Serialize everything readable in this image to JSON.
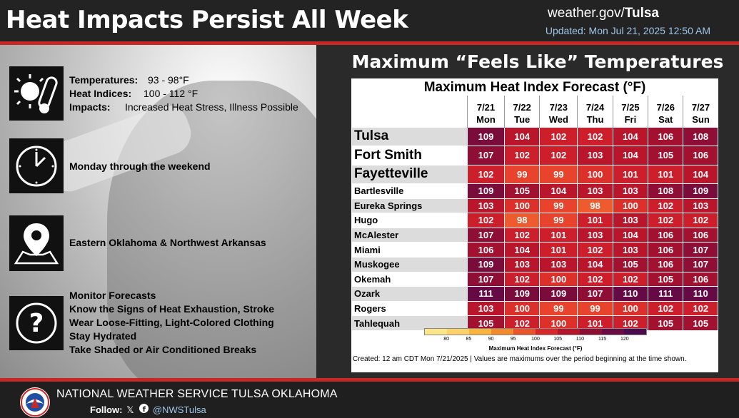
{
  "header": {
    "title": "Heat Impacts Persist All Week",
    "site_prefix": "weather.gov/",
    "site_office": "Tulsa",
    "updated": "Updated: Mon Jul 21, 2025 12:50 AM"
  },
  "left": {
    "temps_label": "Temperatures:",
    "temps_value": "93 - 98°F",
    "heat_label": "Heat Indices:",
    "heat_value": "100 - 112 °F",
    "impacts_label": "Impacts:",
    "impacts_value": "Increased Heat Stress, Illness Possible",
    "timing": "Monday through the weekend",
    "location": "Eastern Oklahoma & Northwest Arkansas",
    "actions": [
      "Monitor Forecasts",
      "Know the Signs of Heat Exhaustion, Stroke",
      "Wear Loose-Fitting, Light-Colored Clothing",
      "Stay Hydrated",
      "Take Shaded or Air Conditioned Breaks"
    ],
    "icons": [
      "sun-thermometer-icon",
      "clock-icon",
      "map-pin-icon",
      "question-icon"
    ]
  },
  "right": {
    "heading": "Maximum “Feels Like” Temperatures",
    "panel_title": "Maximum Heat Index Forecast (°F)",
    "dates": [
      "7/21",
      "7/22",
      "7/23",
      "7/24",
      "7/25",
      "7/26",
      "7/27"
    ],
    "days": [
      "Mon",
      "Tue",
      "Wed",
      "Thu",
      "Fri",
      "Sat",
      "Sun"
    ],
    "rows": [
      {
        "city": "Tulsa",
        "values": [
          109,
          104,
          102,
          102,
          104,
          106,
          108
        ]
      },
      {
        "city": "Fort Smith",
        "values": [
          107,
          102,
          102,
          103,
          104,
          105,
          106
        ]
      },
      {
        "city": "Fayetteville",
        "values": [
          102,
          99,
          99,
          100,
          101,
          101,
          104
        ]
      },
      {
        "city": "Bartlesville",
        "values": [
          109,
          105,
          104,
          103,
          103,
          108,
          109
        ]
      },
      {
        "city": "Eureka Springs",
        "values": [
          103,
          100,
          99,
          98,
          100,
          102,
          103
        ]
      },
      {
        "city": "Hugo",
        "values": [
          102,
          98,
          99,
          101,
          103,
          102,
          102
        ]
      },
      {
        "city": "McAlester",
        "values": [
          107,
          102,
          101,
          103,
          104,
          106,
          106
        ]
      },
      {
        "city": "Miami",
        "values": [
          106,
          104,
          101,
          102,
          103,
          106,
          107
        ]
      },
      {
        "city": "Muskogee",
        "values": [
          109,
          103,
          103,
          104,
          105,
          106,
          107
        ]
      },
      {
        "city": "Okemah",
        "values": [
          107,
          102,
          100,
          102,
          102,
          105,
          106
        ]
      },
      {
        "city": "Ozark",
        "values": [
          111,
          109,
          109,
          107,
          110,
          111,
          110
        ]
      },
      {
        "city": "Rogers",
        "values": [
          103,
          100,
          99,
          99,
          100,
          102,
          102
        ]
      },
      {
        "city": "Tahlequah",
        "values": [
          105,
          102,
          100,
          101,
          102,
          105,
          105
        ]
      }
    ],
    "legend": {
      "ticks": [
        "80",
        "85",
        "90",
        "95",
        "100",
        "105",
        "110",
        "115",
        "120"
      ],
      "caption": "Maximum Heat Index Forecast (°F)",
      "colors": [
        "#fde58a",
        "#fdd268",
        "#f9b43c",
        "#f28a2b",
        "#e9542b",
        "#d7272b",
        "#b51629",
        "#8c0e33",
        "#6b0b45",
        "#4a0a4c"
      ]
    },
    "created": "Created: 12 am CDT Mon 7/21/2025  |  Values are maximums over the period beginning at the time shown."
  },
  "footer": {
    "org": "NATIONAL WEATHER SERVICE TULSA OKLAHOMA",
    "follow_label": "Follow:",
    "handle": "@NWSTulsa"
  }
}
